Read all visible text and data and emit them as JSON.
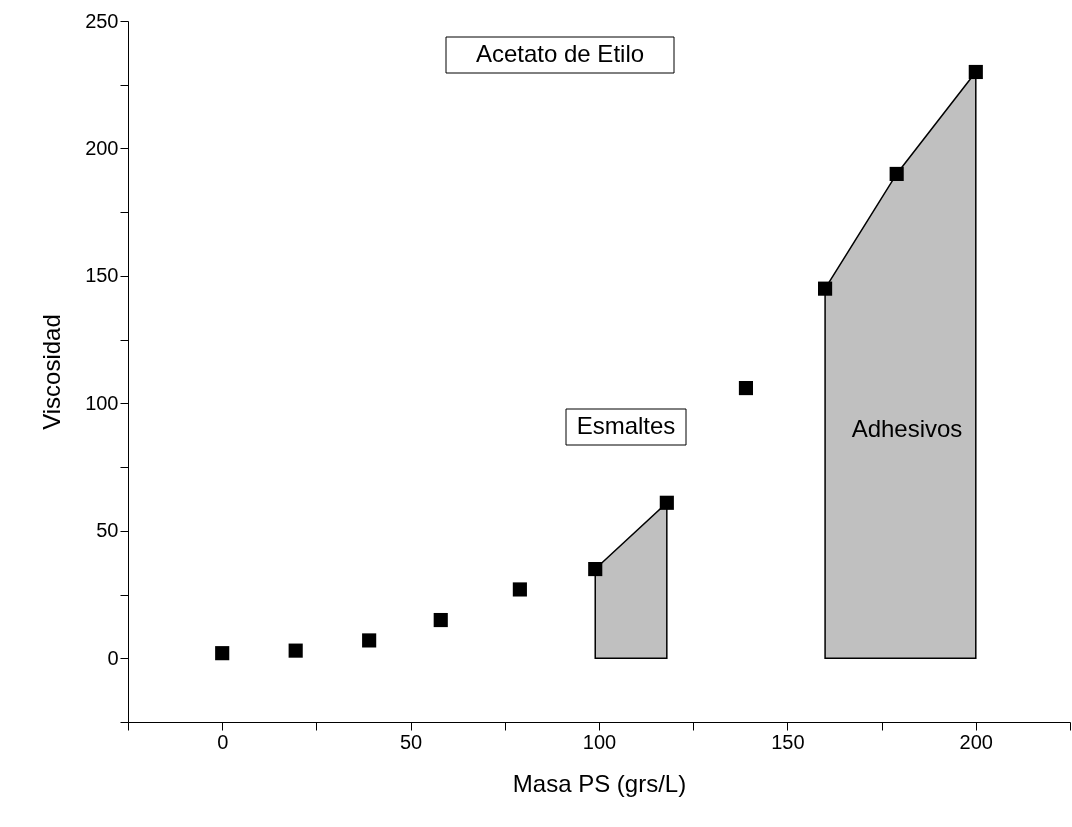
{
  "chart_data": {
    "type": "scatter",
    "xlabel": "Masa PS (grs/L)",
    "ylabel": "Viscosidad",
    "annotations": [
      "Acetato de Etilo",
      "Esmaltes",
      "Adhesivos"
    ],
    "xlim": [
      -25,
      225
    ],
    "ylim": [
      -25,
      250
    ],
    "xticks": [
      {
        "value": -25,
        "label": null
      },
      0,
      {
        "value": 25,
        "label": null
      },
      50,
      {
        "value": 75,
        "label": null
      },
      100,
      {
        "value": 125,
        "label": null
      },
      150,
      {
        "value": 175,
        "label": null
      },
      200,
      {
        "value": 225,
        "label": null
      }
    ],
    "yticks": [
      {
        "value": -25,
        "label": null
      },
      0,
      {
        "value": 25,
        "label": null
      },
      50,
      {
        "value": 75,
        "label": null
      },
      100,
      {
        "value": 125,
        "label": null
      },
      150,
      {
        "value": 175,
        "label": null
      },
      200,
      {
        "value": 225,
        "label": null
      },
      250
    ],
    "grid": false,
    "legend": false,
    "marker": "square",
    "series": [
      {
        "type": "area",
        "marker": "none",
        "color": "#c0c0c0",
        "x": [
          99,
          118
        ],
        "values": [
          35,
          61
        ]
      },
      {
        "type": "area",
        "marker": "none",
        "color": "#c0c0c0",
        "x": [
          160,
          179,
          200
        ],
        "values": [
          145,
          190,
          230
        ]
      },
      {
        "color": "#000000",
        "x": [
          0,
          19.5,
          39,
          58,
          79,
          99,
          118,
          139,
          160,
          179,
          200
        ],
        "values": [
          2,
          3,
          7,
          15,
          27,
          35,
          61,
          106,
          145,
          190,
          230
        ]
      }
    ]
  }
}
